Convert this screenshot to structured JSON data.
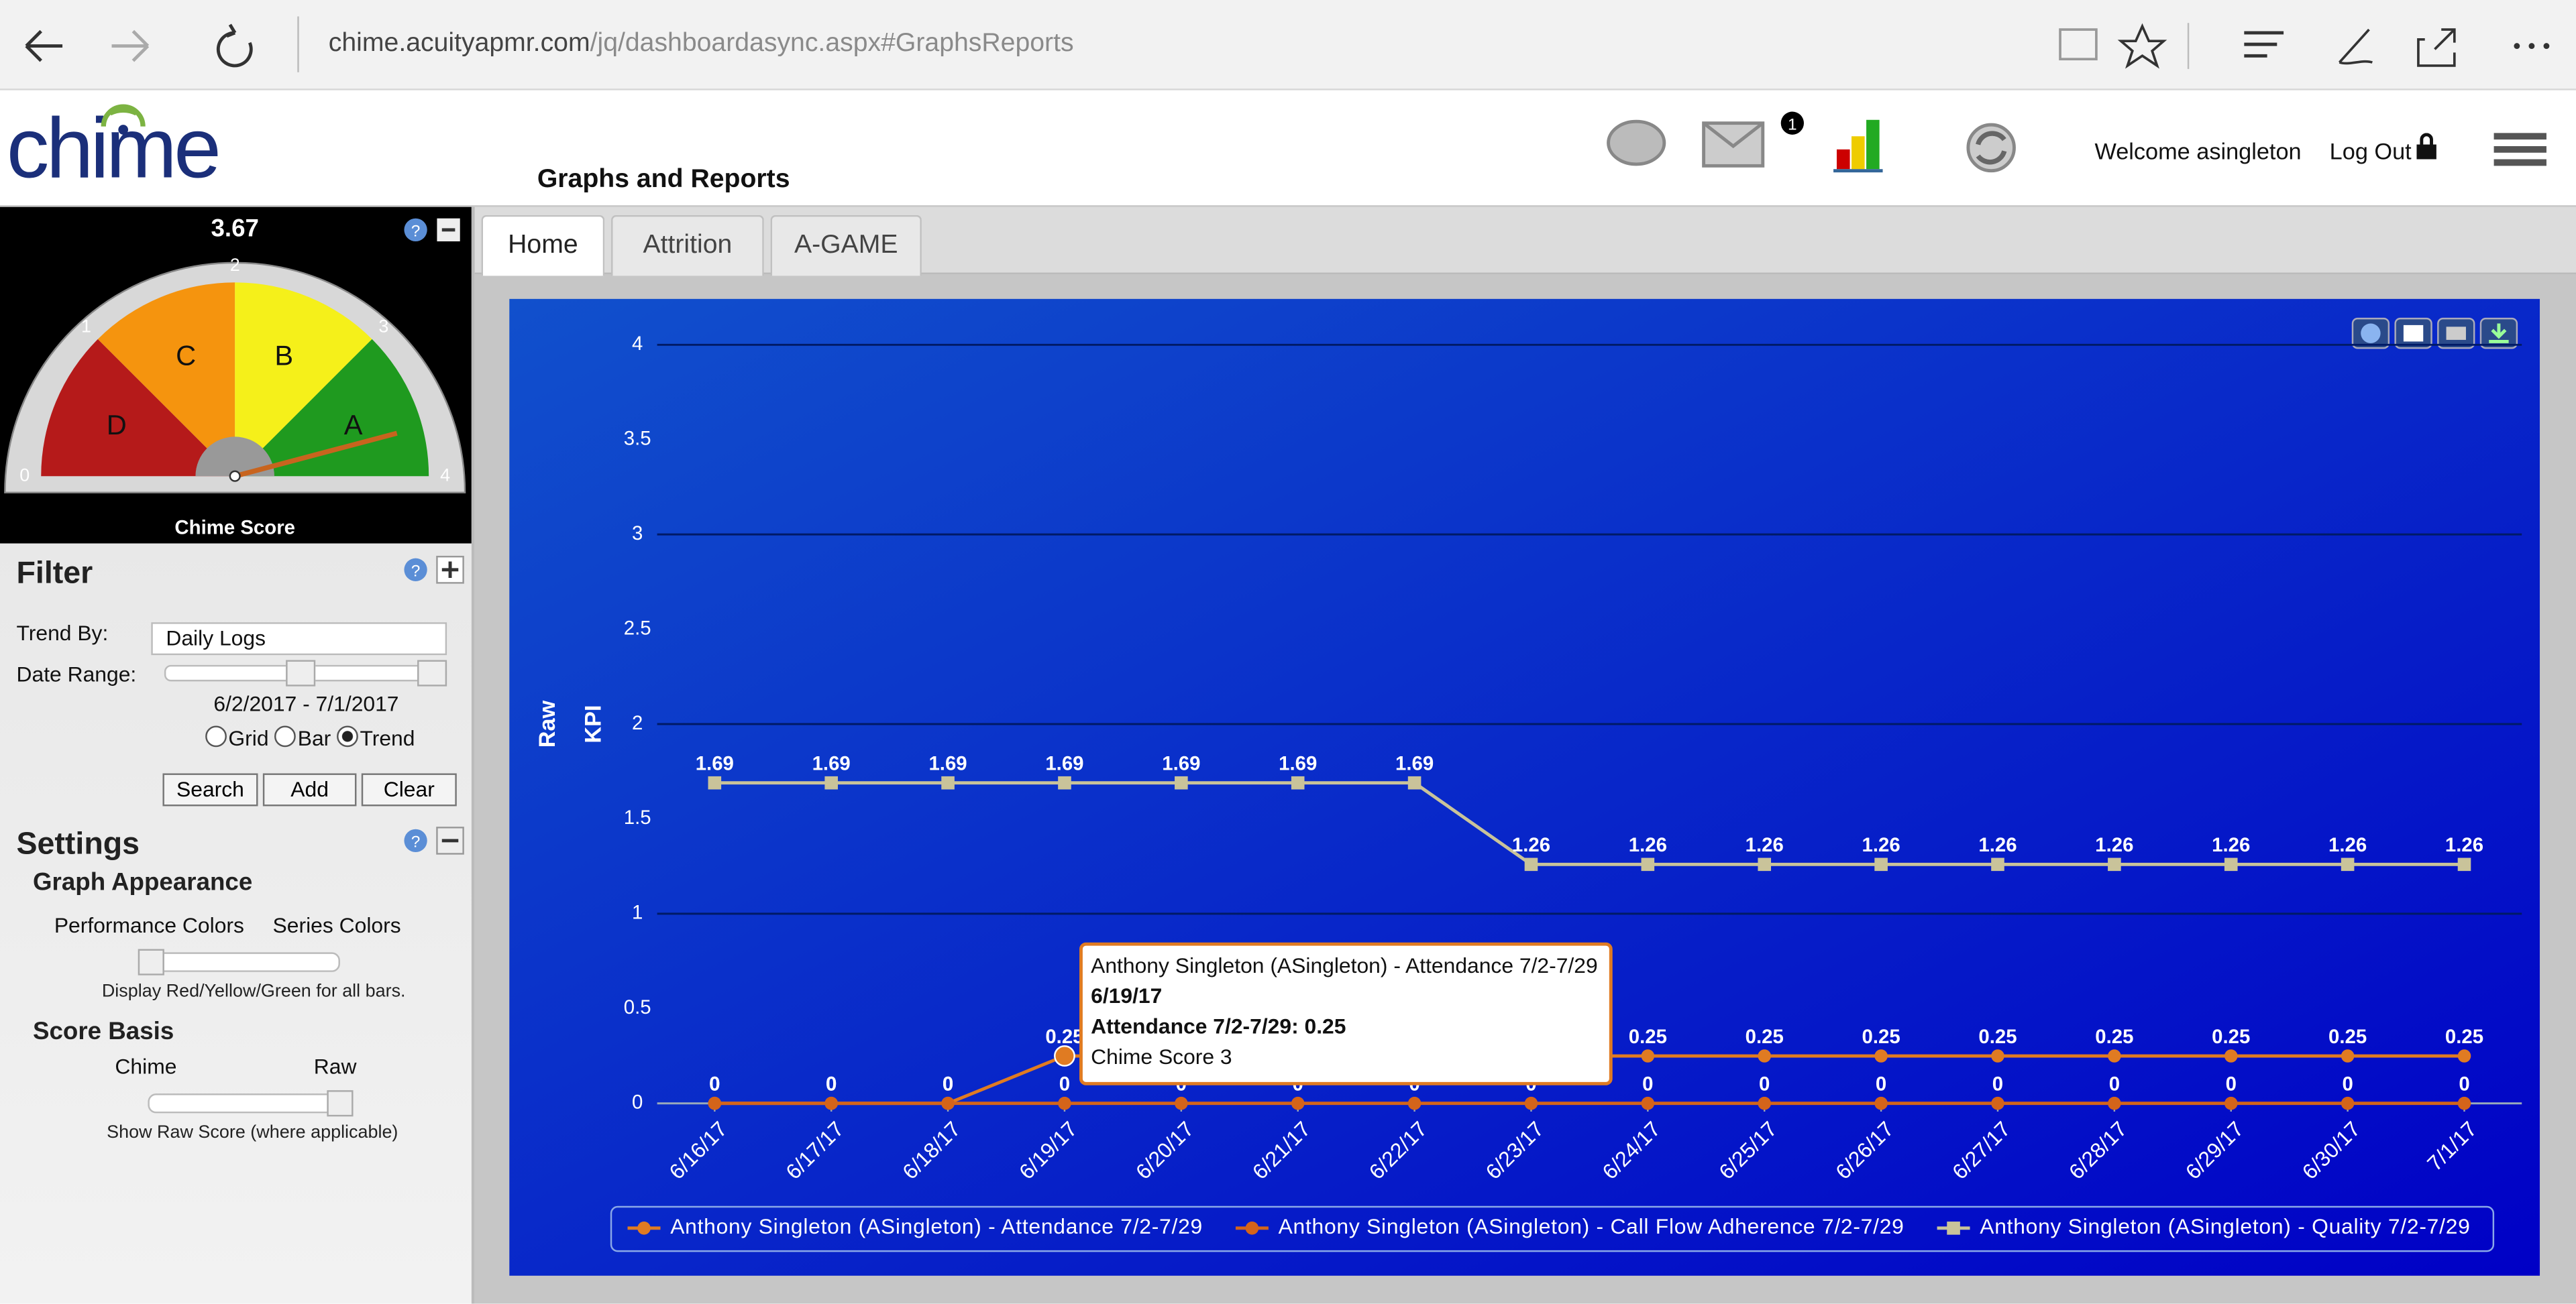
{
  "browser": {
    "url_host": "chime.acuityapmr.com",
    "url_path": "/jq/dashboardasync.aspx#GraphsReports"
  },
  "header": {
    "logo": "chime",
    "page_title": "Graphs and Reports",
    "badge": "1",
    "welcome": "Welcome asingleton",
    "logout": "Log Out"
  },
  "gauge": {
    "value": 3.67,
    "range": [
      0,
      4
    ],
    "ticks": [
      0,
      1,
      2,
      3,
      4
    ],
    "grades": [
      "D",
      "C",
      "B",
      "A"
    ],
    "label": "Chime Score"
  },
  "filter": {
    "title": "Filter",
    "trend_by_label": "Trend By:",
    "trend_by_value": "Daily Logs",
    "date_range_label": "Date Range:",
    "date_range": "6/2/2017 - 7/1/2017",
    "view_options": [
      "Grid",
      "Bar",
      "Trend"
    ],
    "buttons": [
      "Search",
      "Add",
      "Clear"
    ]
  },
  "settings": {
    "title": "Settings",
    "graph_appearance": "Graph Appearance",
    "color_options": [
      "Performance Colors",
      "Series Colors"
    ],
    "color_note": "Display Red/Yellow/Green for all bars.",
    "score_basis": "Score Basis",
    "score_options": [
      "Chime",
      "Raw"
    ],
    "score_note": "Show Raw Score (where applicable)"
  },
  "tabs": [
    "Home",
    "Attrition",
    "A-GAME"
  ],
  "chart_data": {
    "type": "line",
    "y_label": [
      "Raw",
      "KPI"
    ],
    "x": [
      "6/16/17",
      "6/17/17",
      "6/18/17",
      "6/19/17",
      "6/20/17",
      "6/21/17",
      "6/22/17",
      "6/23/17",
      "6/24/17",
      "6/25/17",
      "6/26/17",
      "6/27/17",
      "6/28/17",
      "6/29/17",
      "6/30/17",
      "7/1/17"
    ],
    "series": [
      {
        "name": "Anthony Singleton (ASingleton) - Attendance 7/2-7/29",
        "color": "#e07b22",
        "marker": "circle",
        "values": [
          0,
          0,
          0,
          0.25,
          0.25,
          0.25,
          0.25,
          0.25,
          0.25,
          0.25,
          0.25,
          0.25,
          0.25,
          0.25,
          0.25,
          0.25
        ]
      },
      {
        "name": "Anthony Singleton (ASingleton) - Call Flow Adherence 7/2-7/29",
        "color": "#d4641a",
        "marker": "circle",
        "values": [
          0,
          0,
          0,
          0,
          0,
          0,
          0,
          0,
          0,
          0,
          0,
          0,
          0,
          0,
          0,
          0
        ]
      },
      {
        "name": "Anthony Singleton (ASingleton) - Quality 7/2-7/29",
        "color": "#c9c39a",
        "marker": "square",
        "values": [
          1.69,
          1.69,
          1.69,
          1.69,
          1.69,
          1.69,
          1.69,
          1.26,
          1.26,
          1.26,
          1.26,
          1.26,
          1.26,
          1.26,
          1.26,
          1.26
        ]
      }
    ],
    "ylim": [
      0,
      4
    ],
    "yticks": [
      0,
      0.5,
      1,
      1.5,
      2,
      2.5,
      3,
      3.5,
      4
    ],
    "grid": true,
    "tooltip": {
      "series": 0,
      "point": 3,
      "title": "Anthony Singleton (ASingleton) - Attendance 7/2-7/29",
      "date": "6/19/17",
      "value_line": "Attendance 7/2-7/29: 0.25",
      "score": "Chime Score 3"
    }
  }
}
